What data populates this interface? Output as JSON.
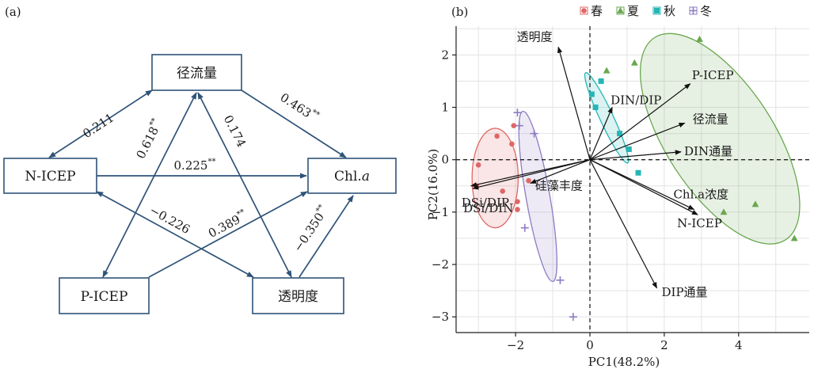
{
  "panel_a": {
    "label": "(a)",
    "nodes": [
      {
        "id": "runoff",
        "label": "径流量"
      },
      {
        "id": "nicep",
        "label": "N-ICEP"
      },
      {
        "id": "chla",
        "label": "Chl.",
        "label_italic": "a"
      },
      {
        "id": "picep",
        "label": "P-ICEP"
      },
      {
        "id": "transparency",
        "label": "透明度"
      }
    ],
    "paths": [
      {
        "from": "runoff",
        "to": "nicep",
        "coef": "0.211",
        "sig": ""
      },
      {
        "from": "runoff",
        "to": "chla",
        "coef": "0.463",
        "sig": "**"
      },
      {
        "from": "runoff",
        "to": "picep",
        "coef": "0.618",
        "sig": "**"
      },
      {
        "from": "runoff",
        "to": "transparency",
        "coef": "0.174",
        "sig": ""
      },
      {
        "from": "nicep",
        "to": "chla",
        "coef": "0.225",
        "sig": "**"
      },
      {
        "from": "nicep",
        "to": "transparency",
        "coef": "−0.226",
        "sig": ""
      },
      {
        "from": "picep",
        "to": "chla",
        "coef": "0.389",
        "sig": "**"
      },
      {
        "from": "transparency",
        "to": "chla",
        "coef": "−0.350",
        "sig": "**"
      }
    ],
    "colors": {
      "arrow": "#2f5378"
    }
  },
  "chart_data": {
    "type": "scatter",
    "panel_label": "(b)",
    "xlabel": "PC1(48.2%)",
    "ylabel": "PC2(16.0%)",
    "xlim": [
      -3.6,
      5.9
    ],
    "ylim": [
      -3.3,
      2.55
    ],
    "xticks": [
      -2,
      0,
      2,
      4
    ],
    "yticks": [
      -3,
      -2,
      -1,
      0,
      1,
      2
    ],
    "grid": true,
    "legend_position": "top",
    "series": [
      {
        "name": "春",
        "marker": "circle",
        "color": "#e06666",
        "points": [
          [
            -2.5,
            0.45
          ],
          [
            -2.1,
            0.3
          ],
          [
            -3.0,
            -0.1
          ],
          [
            -3.05,
            -0.5
          ],
          [
            -2.05,
            0.65
          ],
          [
            -1.65,
            -0.4
          ],
          [
            -1.95,
            -0.95
          ],
          [
            -2.35,
            -0.6
          ],
          [
            -1.95,
            -0.8
          ]
        ],
        "ellipse": {
          "cx": -2.55,
          "cy": -0.35,
          "rx": 0.62,
          "ry": 0.95,
          "angle": 0
        }
      },
      {
        "name": "夏",
        "marker": "triangle",
        "color": "#6aa84f",
        "points": [
          [
            2.95,
            2.3
          ],
          [
            0.45,
            1.7
          ],
          [
            1.2,
            1.85
          ],
          [
            3.6,
            -1.0
          ],
          [
            4.45,
            -0.85
          ],
          [
            5.5,
            -1.5
          ]
        ],
        "ellipse": {
          "cx": 3.5,
          "cy": 0.4,
          "rx": 1.45,
          "ry": 2.3,
          "angle": -33
        }
      },
      {
        "name": "秋",
        "marker": "square",
        "color": "#26b5b5",
        "points": [
          [
            0.05,
            1.25
          ],
          [
            0.3,
            1.5
          ],
          [
            0.15,
            1.0
          ],
          [
            0.8,
            0.5
          ],
          [
            1.05,
            0.2
          ],
          [
            1.3,
            -0.25
          ]
        ],
        "ellipse": {
          "cx": 0.45,
          "cy": 0.8,
          "rx": 0.18,
          "ry": 0.95,
          "angle": -25
        }
      },
      {
        "name": "冬",
        "marker": "plus",
        "color": "#8e7cc3",
        "points": [
          [
            -1.95,
            0.9
          ],
          [
            -1.9,
            0.65
          ],
          [
            -1.5,
            0.5
          ],
          [
            -1.75,
            -1.3
          ],
          [
            -0.8,
            -2.3
          ],
          [
            -0.45,
            -3.0
          ]
        ],
        "ellipse": {
          "cx": -1.4,
          "cy": -0.7,
          "rx": 0.32,
          "ry": 1.65,
          "angle": -10
        }
      }
    ],
    "loadings": [
      {
        "name": "透明度",
        "x": -0.85,
        "y": 2.15
      },
      {
        "name": "DIN/DIP",
        "x": 0.6,
        "y": 1.0
      },
      {
        "name": "P-ICEP",
        "x": 2.7,
        "y": 1.45
      },
      {
        "name": "径流量",
        "x": 2.55,
        "y": 0.7
      },
      {
        "name": "DIN通量",
        "x": 2.45,
        "y": 0.15
      },
      {
        "name": "Chl.a浓度",
        "x": 2.8,
        "y": -0.95
      },
      {
        "name": "N-ICEP",
        "x": 2.9,
        "y": -1.05
      },
      {
        "name": "DIP通量",
        "x": 1.8,
        "y": -2.45
      },
      {
        "name": "DSi/DIN",
        "x": -3.15,
        "y": -0.55
      },
      {
        "name": "DSi/DIP",
        "x": -3.2,
        "y": -0.5
      },
      {
        "name": "硅藻丰度",
        "x": -1.6,
        "y": -0.45
      }
    ]
  }
}
